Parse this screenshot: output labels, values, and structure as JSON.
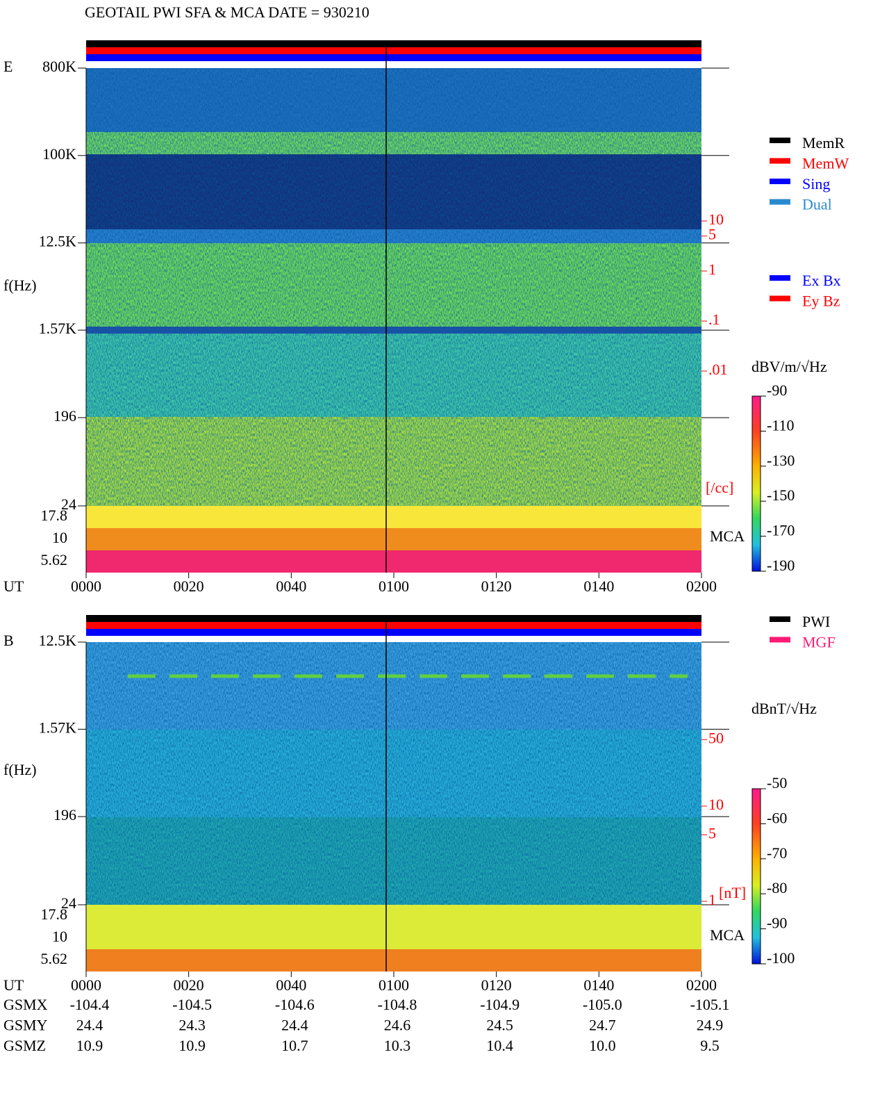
{
  "title": "GEOTAIL  PWI SFA & MCA  DATE = 930210",
  "chart_data": [
    {
      "type": "spectrogram",
      "label": "E",
      "ylabel": "f(Hz)",
      "xlabel": "UT",
      "x": [
        "0000",
        "0020",
        "0040",
        "0100",
        "0120",
        "0140",
        "0200"
      ],
      "log_y": true,
      "ylim": [
        24,
        800000
      ],
      "yticks": [
        {
          "value": 800000,
          "label": "800K"
        },
        {
          "value": 100000,
          "label": "100K"
        },
        {
          "value": 12500,
          "label": "12.5K"
        },
        {
          "value": 1570,
          "label": "1.57K"
        },
        196,
        24
      ],
      "mca_label": "MCA",
      "mca_channels": [
        17.8,
        10,
        5.62
      ],
      "colorbar_label": "dBV/m/√Hz",
      "clim": [
        -190,
        -90
      ],
      "cticks": [
        -90,
        -110,
        -130,
        -150,
        -170,
        -190
      ],
      "scale_unit": "[/cc]",
      "scale_lim": [
        0.001,
        100
      ],
      "scale_ticks": [
        10,
        5,
        1,
        {
          "value": 0.1,
          "label": ".1"
        },
        {
          "value": 0.01,
          "label": ".01"
        }
      ],
      "legend": [
        {
          "name": "MemR",
          "color": "#000000"
        },
        {
          "name": "MemW",
          "color": "#ff0000"
        },
        {
          "name": "Sing",
          "color": "#0000ff"
        },
        {
          "name": "Dual",
          "color": "#2a8ad0"
        }
      ],
      "legend2": [
        {
          "name": "Ex Bx",
          "color": "#0000ff"
        },
        {
          "name": "Ey Bz",
          "color": "#ff0000"
        }
      ]
    },
    {
      "type": "spectrogram",
      "label": "B",
      "ylabel": "f(Hz)",
      "xlabel": "UT",
      "x": [
        "0000",
        "0020",
        "0040",
        "0100",
        "0120",
        "0140",
        "0200"
      ],
      "log_y": true,
      "ylim": [
        24,
        12500
      ],
      "yticks": [
        {
          "value": 12500,
          "label": "12.5K"
        },
        {
          "value": 1570,
          "label": "1.57K"
        },
        196,
        24
      ],
      "mca_label": "MCA",
      "mca_channels": [
        17.8,
        10,
        5.62
      ],
      "colorbar_label": "dBnT/√Hz",
      "clim": [
        -100,
        -50
      ],
      "cticks": [
        -50,
        -60,
        -70,
        -80,
        -90,
        -100
      ],
      "scale_unit": "[nT]",
      "scale_lim": [
        1,
        100
      ],
      "scale_ticks": [
        50,
        10,
        5,
        1
      ],
      "legend": [
        {
          "name": "PWI",
          "color": "#000000"
        },
        {
          "name": "MGF",
          "color": "#ff1a75"
        }
      ]
    }
  ],
  "orbit": {
    "rows": [
      {
        "label": "GSMX",
        "values": [
          "-104.4",
          "-104.5",
          "-104.6",
          "-104.8",
          "-104.9",
          "-105.0",
          "-105.1"
        ]
      },
      {
        "label": "GSMY",
        "values": [
          "24.4",
          "24.3",
          "24.4",
          "24.6",
          "24.5",
          "24.7",
          "24.9"
        ]
      },
      {
        "label": "GSMZ",
        "values": [
          "10.9",
          "10.9",
          "10.7",
          "10.3",
          "10.4",
          "10.0",
          "9.5"
        ]
      }
    ]
  }
}
